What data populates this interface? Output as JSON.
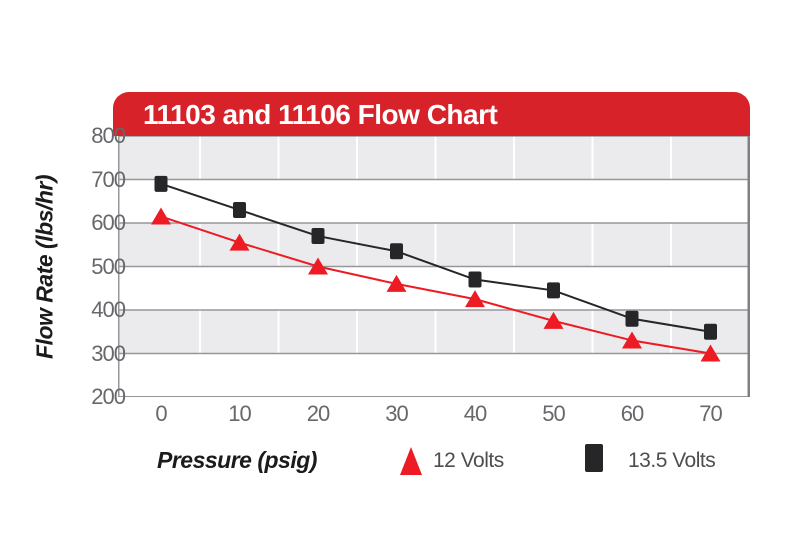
{
  "colors": {
    "header_red": "#d7222a",
    "series_red": "#ed1c24",
    "series_black": "#262528",
    "band_gray": "#ebebed",
    "grid_line_gray": "#97979b",
    "plot_right_border": "#808084",
    "tick_text_gray": "#66686c",
    "legend_text_gray": "#4d4e50",
    "title_text": "#ffffff"
  },
  "chart_data": {
    "type": "line",
    "title": "11103 and 11106 Flow Chart",
    "xlabel": "Pressure (psig)",
    "ylabel": "Flow Rate (lbs/hr)",
    "categories": [
      0,
      10,
      20,
      30,
      40,
      50,
      60,
      70
    ],
    "x_tick_labels": [
      "0",
      "10",
      "20",
      "30",
      "40",
      "50",
      "60",
      "70"
    ],
    "y_tick_labels": [
      "800",
      "700",
      "600",
      "500",
      "400",
      "300",
      "200"
    ],
    "y_ticks": [
      800,
      700,
      600,
      500,
      400,
      300,
      200
    ],
    "ylim": [
      200,
      800
    ],
    "xlim_psig": [
      0,
      70
    ],
    "grid": "horizontal-bands-alternating",
    "legend_position": "bottom",
    "series": [
      {
        "name": "12 Volts",
        "marker": "triangle",
        "color": "#ed1c24",
        "values": [
          615,
          555,
          500,
          460,
          425,
          375,
          330,
          300
        ]
      },
      {
        "name": "13.5 Volts",
        "marker": "square",
        "color": "#262528",
        "values": [
          690,
          630,
          570,
          535,
          470,
          445,
          380,
          350
        ]
      }
    ]
  }
}
